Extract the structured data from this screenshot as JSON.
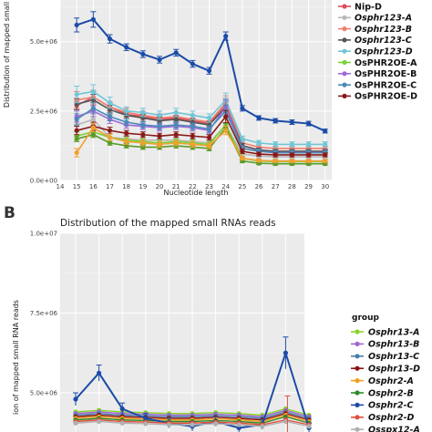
{
  "panel_b_label": "B",
  "chart_data": [
    {
      "type": "line",
      "panel": "A",
      "title": "",
      "xlabel": "Nucleotide length",
      "ylabel": "Distribution of mapped small",
      "x": [
        15,
        16,
        17,
        18,
        19,
        20,
        21,
        22,
        23,
        24,
        25,
        26,
        27,
        28,
        29,
        30
      ],
      "x_ticks": [
        "14",
        "15",
        "16",
        "17",
        "18",
        "19",
        "20",
        "21",
        "22",
        "23",
        "24",
        "25",
        "26",
        "27",
        "28",
        "29",
        "30"
      ],
      "x_range": [
        14,
        30.4
      ],
      "y_ticks": [
        "0.0e+00",
        "2.5e+06",
        "5.0e+06"
      ],
      "ylim": [
        0,
        6500000
      ],
      "grid": true,
      "legend_position": "right",
      "series": [
        {
          "name": "Nip-D",
          "italic": false,
          "color": "#d84f5a",
          "values": [
            2700000,
            3000000,
            2650000,
            2380000,
            2300000,
            2200000,
            2250000,
            2150000,
            2050000,
            2750000,
            1250000,
            1100000,
            1050000,
            1050000,
            1050000,
            1050000
          ],
          "err": [
            150000,
            200000,
            150000,
            100000,
            100000,
            100000,
            100000,
            100000,
            100000,
            200000,
            80000,
            60000,
            60000,
            60000,
            60000,
            60000
          ]
        },
        {
          "name": "Osphr123-A",
          "italic": true,
          "color": "#b8b8b8",
          "values": [
            2000000,
            2200000,
            1550000,
            1500000,
            1450000,
            1450000,
            1450000,
            1400000,
            1350000,
            2000000,
            950000,
            880000,
            850000,
            850000,
            850000,
            850000
          ],
          "err": [
            250000,
            200000,
            150000,
            120000,
            120000,
            120000,
            120000,
            120000,
            120000,
            200000,
            80000,
            70000,
            70000,
            70000,
            70000,
            70000
          ]
        },
        {
          "name": "Osphr123-B",
          "italic": true,
          "color": "#f08070",
          "values": [
            2900000,
            3000000,
            2650000,
            2450000,
            2350000,
            2250000,
            2300000,
            2200000,
            2100000,
            2800000,
            1350000,
            1200000,
            1150000,
            1150000,
            1150000,
            1150000
          ],
          "err": [
            300000,
            250000,
            200000,
            150000,
            150000,
            150000,
            150000,
            150000,
            150000,
            250000,
            100000,
            80000,
            80000,
            80000,
            80000,
            80000
          ]
        },
        {
          "name": "Osphr123-C",
          "italic": true,
          "color": "#555555",
          "values": [
            2750000,
            2900000,
            2550000,
            2350000,
            2250000,
            2150000,
            2200000,
            2100000,
            2000000,
            2650000,
            1250000,
            1100000,
            1050000,
            1050000,
            1050000,
            1050000
          ],
          "err": [
            200000,
            200000,
            150000,
            120000,
            120000,
            120000,
            120000,
            120000,
            120000,
            200000,
            80000,
            70000,
            70000,
            70000,
            70000,
            70000
          ]
        },
        {
          "name": "Osphr123-D",
          "italic": true,
          "color": "#6fc7d8",
          "values": [
            3100000,
            3200000,
            2800000,
            2500000,
            2450000,
            2350000,
            2450000,
            2350000,
            2250000,
            2900000,
            1500000,
            1350000,
            1300000,
            1300000,
            1300000,
            1300000
          ],
          "err": [
            300000,
            250000,
            200000,
            150000,
            150000,
            150000,
            150000,
            150000,
            150000,
            250000,
            100000,
            90000,
            90000,
            90000,
            90000,
            90000
          ]
        },
        {
          "name": "OsPHR2OE-A",
          "italic": false,
          "color": "#7bd23a",
          "values": [
            1600000,
            1750000,
            1550000,
            1450000,
            1400000,
            1350000,
            1400000,
            1350000,
            1300000,
            2000000,
            800000,
            700000,
            680000,
            680000,
            680000,
            680000
          ],
          "err": [
            150000,
            150000,
            120000,
            100000,
            100000,
            100000,
            100000,
            100000,
            100000,
            200000,
            70000,
            60000,
            60000,
            60000,
            60000,
            60000
          ]
        },
        {
          "name": "OsPHR2OE-B",
          "italic": false,
          "color": "#a068d8",
          "values": [
            2300000,
            2500000,
            2200000,
            2000000,
            1950000,
            1900000,
            1950000,
            1900000,
            1800000,
            2650000,
            1150000,
            1050000,
            1000000,
            1000000,
            1000000,
            1000000
          ],
          "err": [
            200000,
            200000,
            150000,
            120000,
            120000,
            120000,
            120000,
            120000,
            120000,
            250000,
            90000,
            80000,
            80000,
            80000,
            80000,
            80000
          ]
        },
        {
          "name": "OsPHR2OE-C",
          "italic": false,
          "color": "#4a8ab8",
          "values": [
            2200000,
            2600000,
            2300000,
            2100000,
            2000000,
            1950000,
            2000000,
            1950000,
            1850000,
            2500000,
            1150000,
            1050000,
            1000000,
            1000000,
            1000000,
            1000000
          ],
          "err": [
            200000,
            200000,
            150000,
            120000,
            120000,
            120000,
            120000,
            120000,
            120000,
            220000,
            90000,
            80000,
            80000,
            80000,
            80000,
            80000
          ]
        },
        {
          "name": "OsPHR2OE-D",
          "italic": false,
          "color": "#8a1a1a",
          "values": [
            1800000,
            1950000,
            1800000,
            1700000,
            1650000,
            1600000,
            1650000,
            1600000,
            1550000,
            2300000,
            1050000,
            950000,
            920000,
            920000,
            920000,
            920000
          ],
          "err": [
            150000,
            150000,
            120000,
            100000,
            100000,
            100000,
            100000,
            100000,
            100000,
            220000,
            80000,
            70000,
            70000,
            70000,
            70000,
            70000
          ]
        },
        {
          "name": "",
          "italic": false,
          "color": "#5a9a28",
          "values": [
            1500000,
            1650000,
            1350000,
            1250000,
            1200000,
            1200000,
            1250000,
            1200000,
            1150000,
            1900000,
            700000,
            620000,
            600000,
            600000,
            600000,
            600000
          ],
          "err": [
            100000,
            100000,
            80000,
            80000,
            80000,
            80000,
            80000,
            80000,
            80000,
            150000,
            60000,
            50000,
            50000,
            50000,
            50000,
            50000
          ]
        },
        {
          "name": "",
          "italic": false,
          "color": "#f0a030",
          "values": [
            1000000,
            1900000,
            1550000,
            1400000,
            1350000,
            1300000,
            1350000,
            1300000,
            1250000,
            1800000,
            800000,
            720000,
            700000,
            700000,
            700000,
            700000
          ],
          "err": [
            150000,
            150000,
            120000,
            100000,
            100000,
            100000,
            100000,
            100000,
            100000,
            150000,
            60000,
            50000,
            50000,
            50000,
            50000,
            50000
          ]
        },
        {
          "name": "",
          "italic": false,
          "color": "#1c4ba8",
          "values": [
            5600000,
            5800000,
            5100000,
            4800000,
            4550000,
            4350000,
            4600000,
            4200000,
            3950000,
            5200000,
            2600000,
            2250000,
            2150000,
            2100000,
            2050000,
            1780000
          ],
          "err": [
            250000,
            280000,
            150000,
            120000,
            120000,
            120000,
            120000,
            120000,
            120000,
            150000,
            100000,
            80000,
            80000,
            80000,
            80000,
            70000
          ]
        }
      ]
    },
    {
      "type": "line",
      "panel": "B",
      "title": "Distribution of the mapped small RNAs reads",
      "xlabel": "",
      "ylabel": "ion of mapped small RNA reads",
      "x": [
        15,
        16,
        17,
        18,
        19,
        20,
        21,
        22,
        23,
        24,
        25
      ],
      "y_ticks": [
        "1.0e+07",
        "7.5e+06",
        "5.0e+06"
      ],
      "ylim": [
        4500000,
        10000000
      ],
      "grid": true,
      "legend_title": "group",
      "legend_position": "right",
      "series": [
        {
          "name": "Osphr13-A",
          "color": "#8bd42a",
          "values": [
            4400000,
            4450000,
            4400000,
            4380000,
            4350000,
            4350000,
            4380000,
            4350000,
            4300000,
            4500000,
            4300000
          ],
          "err": [
            0,
            0,
            0,
            0,
            0,
            0,
            0,
            0,
            0,
            0,
            0
          ]
        },
        {
          "name": "Osphr13-B",
          "color": "#a065d5",
          "values": [
            4350000,
            4400000,
            4350000,
            4330000,
            4300000,
            4300000,
            4330000,
            4300000,
            4250000,
            4450000,
            4250000
          ],
          "err": [
            0,
            0,
            0,
            0,
            0,
            0,
            0,
            0,
            0,
            0,
            0
          ]
        },
        {
          "name": "Osphr13-C",
          "color": "#4f7fa8",
          "values": [
            4300000,
            4350000,
            4300000,
            4280000,
            4250000,
            4250000,
            4280000,
            4250000,
            4200000,
            4400000,
            4200000
          ],
          "err": [
            0,
            0,
            0,
            0,
            0,
            0,
            0,
            0,
            0,
            0,
            0
          ]
        },
        {
          "name": "Osphr13-D",
          "color": "#8a1212",
          "values": [
            4250000,
            4300000,
            4250000,
            4230000,
            4200000,
            4200000,
            4230000,
            4200000,
            4150000,
            4350000,
            4150000
          ],
          "err": [
            0,
            0,
            0,
            0,
            0,
            0,
            0,
            0,
            0,
            0,
            0
          ]
        },
        {
          "name": "Osphr2-A",
          "color": "#f5a020",
          "values": [
            4200000,
            4250000,
            4200000,
            4180000,
            4150000,
            4150000,
            4180000,
            4150000,
            4100000,
            4300000,
            4100000
          ],
          "err": [
            0,
            0,
            0,
            0,
            0,
            0,
            0,
            0,
            0,
            0,
            0
          ]
        },
        {
          "name": "Osphr2-B",
          "color": "#2f8a2a",
          "values": [
            4150000,
            4200000,
            4150000,
            4130000,
            4100000,
            4100000,
            4130000,
            4100000,
            4050000,
            4250000,
            4050000
          ],
          "err": [
            0,
            0,
            0,
            0,
            0,
            0,
            0,
            0,
            0,
            0,
            0
          ]
        },
        {
          "name": "Osphr2-C",
          "color": "#1c4ba8",
          "values": [
            4800000,
            5620000,
            4500000,
            4200000,
            4050000,
            3950000,
            4100000,
            3900000,
            4000000,
            6250000,
            3900000
          ],
          "err": [
            200000,
            250000,
            180000,
            150000,
            150000,
            150000,
            150000,
            150000,
            150000,
            500000,
            150000
          ]
        },
        {
          "name": "Osphr2-D",
          "color": "#e0503e",
          "values": [
            4100000,
            4150000,
            4100000,
            4080000,
            4050000,
            4050000,
            4080000,
            4050000,
            4000000,
            4150000,
            4000000
          ],
          "err": [
            0,
            0,
            0,
            0,
            0,
            0,
            0,
            0,
            0,
            0,
            0
          ]
        },
        {
          "name": "Osspx12-A",
          "color": "#b0b0b0",
          "values": [
            4050000,
            4100000,
            4050000,
            4030000,
            4000000,
            4000000,
            4030000,
            4000000,
            3950000,
            4100000,
            3950000
          ],
          "err": [
            0,
            0,
            0,
            0,
            0,
            0,
            0,
            0,
            0,
            0,
            0
          ]
        }
      ]
    }
  ]
}
